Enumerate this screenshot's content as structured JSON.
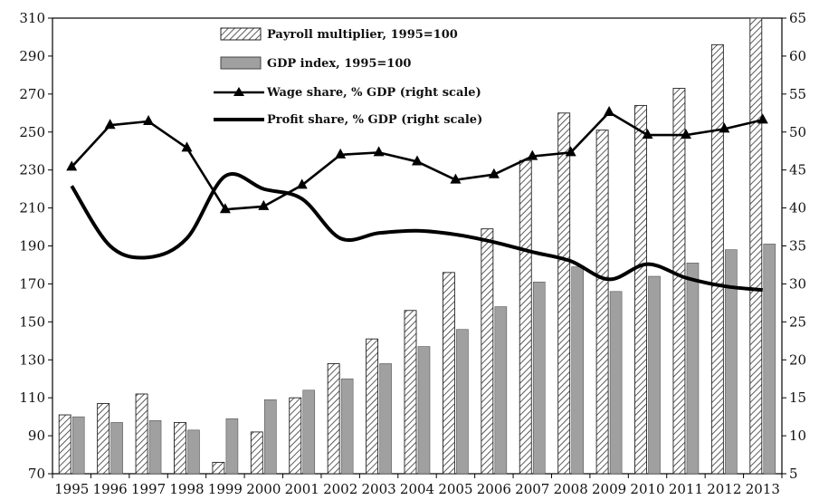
{
  "chart_data": {
    "type": "bar",
    "categories": [
      "1995",
      "1996",
      "1997",
      "1998",
      "1999",
      "2000",
      "2001",
      "2002",
      "2003",
      "2004",
      "2005",
      "2006",
      "2007",
      "2008",
      "2009",
      "2010",
      "2011",
      "2012",
      "2013"
    ],
    "left_axis": {
      "min": 70,
      "max": 310,
      "ticks": [
        70,
        90,
        110,
        130,
        150,
        170,
        190,
        210,
        230,
        250,
        270,
        290,
        310
      ]
    },
    "right_axis": {
      "min": 5,
      "max": 65,
      "ticks": [
        5,
        10,
        15,
        20,
        25,
        30,
        35,
        40,
        45,
        50,
        55,
        60,
        65
      ]
    },
    "grid": false,
    "legend_position": "top-center",
    "series": [
      {
        "name": "Payroll multiplier, 1995=100",
        "kind": "bar",
        "pattern": "hatched",
        "axis": "left",
        "values": [
          101,
          107,
          112,
          97,
          76,
          92,
          110,
          128,
          141,
          156,
          176,
          199,
          235,
          260,
          251,
          264,
          273,
          296,
          312
        ]
      },
      {
        "name": "GDP index, 1995=100",
        "kind": "bar",
        "pattern": "solid-gray",
        "axis": "left",
        "values": [
          100,
          97,
          98,
          93,
          99,
          109,
          114,
          120,
          128,
          137,
          146,
          158,
          171,
          179,
          166,
          174,
          181,
          188,
          191
        ]
      },
      {
        "name": "Wage share, % GDP (right scale)",
        "kind": "line",
        "marker": "triangle",
        "axis": "right",
        "values": [
          45.4,
          50.9,
          51.4,
          47.9,
          39.8,
          40.2,
          43.0,
          47.0,
          47.3,
          46.1,
          43.7,
          44.4,
          46.8,
          47.3,
          52.6,
          49.6,
          49.6,
          50.4,
          51.6
        ]
      },
      {
        "name": "Profit share, % GDP (right scale)",
        "kind": "line",
        "marker": "none",
        "axis": "right",
        "values": [
          42.9,
          35.0,
          33.5,
          36.0,
          44.2,
          42.5,
          41.2,
          36.0,
          36.7,
          37.0,
          36.5,
          35.5,
          34.2,
          33.0,
          30.6,
          32.6,
          30.8,
          29.7,
          29.2
        ]
      }
    ],
    "colors": {
      "hatch": "#333333",
      "gdp_bar": "#a0a0a0",
      "line": "#000000"
    }
  }
}
